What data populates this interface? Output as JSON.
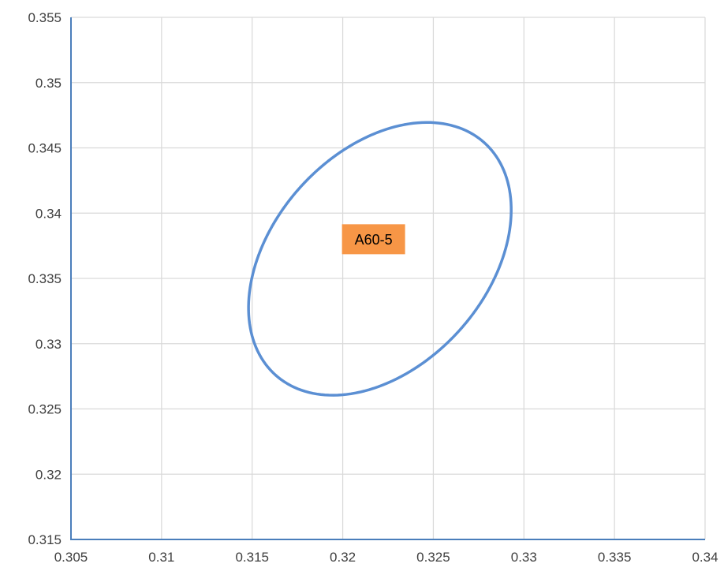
{
  "chart_data": {
    "type": "scatter",
    "title": "",
    "xlabel": "",
    "ylabel": "",
    "xlim": [
      0.305,
      0.34
    ],
    "ylim": [
      0.315,
      0.355
    ],
    "x_ticks": [
      0.305,
      0.31,
      0.315,
      0.32,
      0.325,
      0.33,
      0.335,
      0.34
    ],
    "y_ticks": [
      0.315,
      0.32,
      0.325,
      0.33,
      0.335,
      0.34,
      0.345,
      0.35,
      0.355
    ],
    "x_tick_labels": [
      "0.305",
      "0.31",
      "0.315",
      "0.32",
      "0.325",
      "0.33",
      "0.335",
      "0.34"
    ],
    "y_tick_labels": [
      "0.315",
      "0.32",
      "0.325",
      "0.33",
      "0.335",
      "0.34",
      "0.345",
      "0.35",
      "0.355"
    ],
    "grid": true,
    "legend": "none",
    "series": [
      {
        "shape": "ellipse",
        "center": [
          0.32205,
          0.3365
        ],
        "x_range": [
          0.3148,
          0.3293
        ],
        "y_range": [
          0.3261,
          0.347
        ],
        "rotation_deg": 48,
        "color": "#5B8FD3"
      }
    ],
    "annotations": [
      {
        "text": "A60-5",
        "x": 0.3217,
        "y": 0.338,
        "background": "#F79646"
      }
    ]
  }
}
